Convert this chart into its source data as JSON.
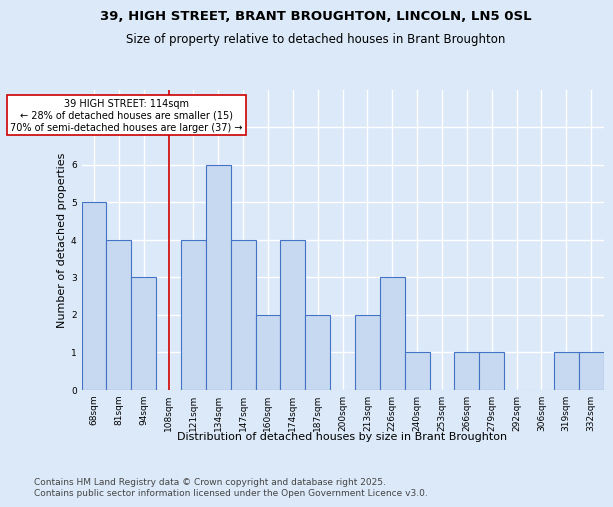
{
  "title1": "39, HIGH STREET, BRANT BROUGHTON, LINCOLN, LN5 0SL",
  "title2": "Size of property relative to detached houses in Brant Broughton",
  "xlabel": "Distribution of detached houses by size in Brant Broughton",
  "ylabel": "Number of detached properties",
  "footnote1": "Contains HM Land Registry data © Crown copyright and database right 2025.",
  "footnote2": "Contains public sector information licensed under the Open Government Licence v3.0.",
  "categories": [
    "68sqm",
    "81sqm",
    "94sqm",
    "108sqm",
    "121sqm",
    "134sqm",
    "147sqm",
    "160sqm",
    "174sqm",
    "187sqm",
    "200sqm",
    "213sqm",
    "226sqm",
    "240sqm",
    "253sqm",
    "266sqm",
    "279sqm",
    "292sqm",
    "306sqm",
    "319sqm",
    "332sqm"
  ],
  "values": [
    5,
    4,
    3,
    0,
    4,
    6,
    4,
    2,
    4,
    2,
    0,
    2,
    3,
    1,
    0,
    1,
    1,
    0,
    0,
    1,
    1
  ],
  "bar_color": "#c6d9f0",
  "bar_edge_color": "#4472c4",
  "highlight_bar_index": 3,
  "red_line_x": 3,
  "annotation_text": "39 HIGH STREET: 114sqm\n← 28% of detached houses are smaller (15)\n70% of semi-detached houses are larger (37) →",
  "annotation_box_facecolor": "#ffffff",
  "annotation_box_edgecolor": "#cc0000",
  "ylim": [
    0,
    8
  ],
  "yticks": [
    0,
    1,
    2,
    3,
    4,
    5,
    6,
    7
  ],
  "background_color": "#dce9f8",
  "grid_color": "#ffffff",
  "title1_fontsize": 9.5,
  "title2_fontsize": 8.5,
  "ylabel_fontsize": 8,
  "xlabel_fontsize": 8,
  "tick_fontsize": 6.5,
  "footnote_fontsize": 6.5,
  "annotation_fontsize": 7
}
